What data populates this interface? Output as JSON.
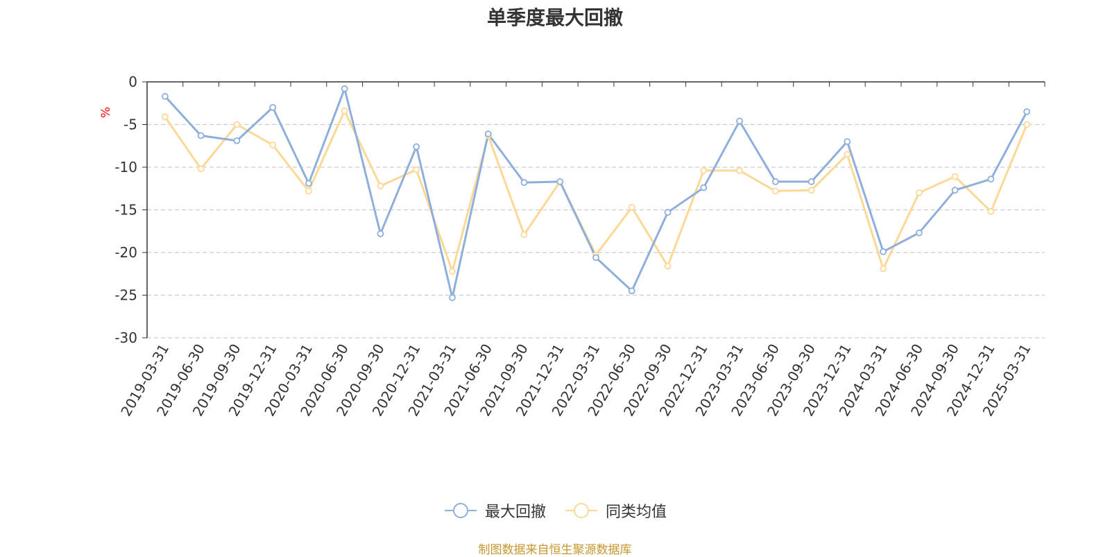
{
  "chart_data": {
    "type": "line",
    "title": "单季度最大回撤",
    "ylabel": "%",
    "ylim": [
      -30,
      0
    ],
    "yticks": [
      0,
      -5,
      -10,
      -15,
      -20,
      -25,
      -30
    ],
    "grid": true,
    "legend_position": "bottom-center",
    "categories": [
      "2019-03-31",
      "2019-06-30",
      "2019-09-30",
      "2019-12-31",
      "2020-03-31",
      "2020-06-30",
      "2020-09-30",
      "2020-12-31",
      "2021-03-31",
      "2021-06-30",
      "2021-09-30",
      "2021-12-31",
      "2022-03-31",
      "2022-06-30",
      "2022-09-30",
      "2022-12-31",
      "2023-03-31",
      "2023-06-30",
      "2023-09-30",
      "2023-12-31",
      "2024-03-31",
      "2024-06-30",
      "2024-09-30",
      "2024-12-31",
      "2025-03-31"
    ],
    "series": [
      {
        "name": "最大回撤",
        "color": "#8eaedb",
        "values": [
          -1.7,
          -6.3,
          -6.9,
          -3.0,
          -11.9,
          -0.8,
          -17.8,
          -7.6,
          -25.3,
          -6.1,
          -11.8,
          -11.7,
          -20.6,
          -24.5,
          -15.3,
          -12.4,
          -4.6,
          -11.7,
          -11.7,
          -7.0,
          -19.9,
          -17.7,
          -12.7,
          -11.4,
          -3.5
        ]
      },
      {
        "name": "同类均值",
        "color": "#fbd896",
        "values": [
          -4.1,
          -10.2,
          -5.0,
          -7.4,
          -12.8,
          -3.4,
          -12.2,
          -10.3,
          -22.2,
          -6.3,
          -17.9,
          -11.7,
          -20.3,
          -14.7,
          -21.6,
          -10.4,
          -10.4,
          -12.8,
          -12.7,
          -8.5,
          -21.9,
          -13.0,
          -11.1,
          -15.2,
          -5.0
        ]
      }
    ]
  },
  "source_note": "制图数据来自恒生聚源数据库"
}
